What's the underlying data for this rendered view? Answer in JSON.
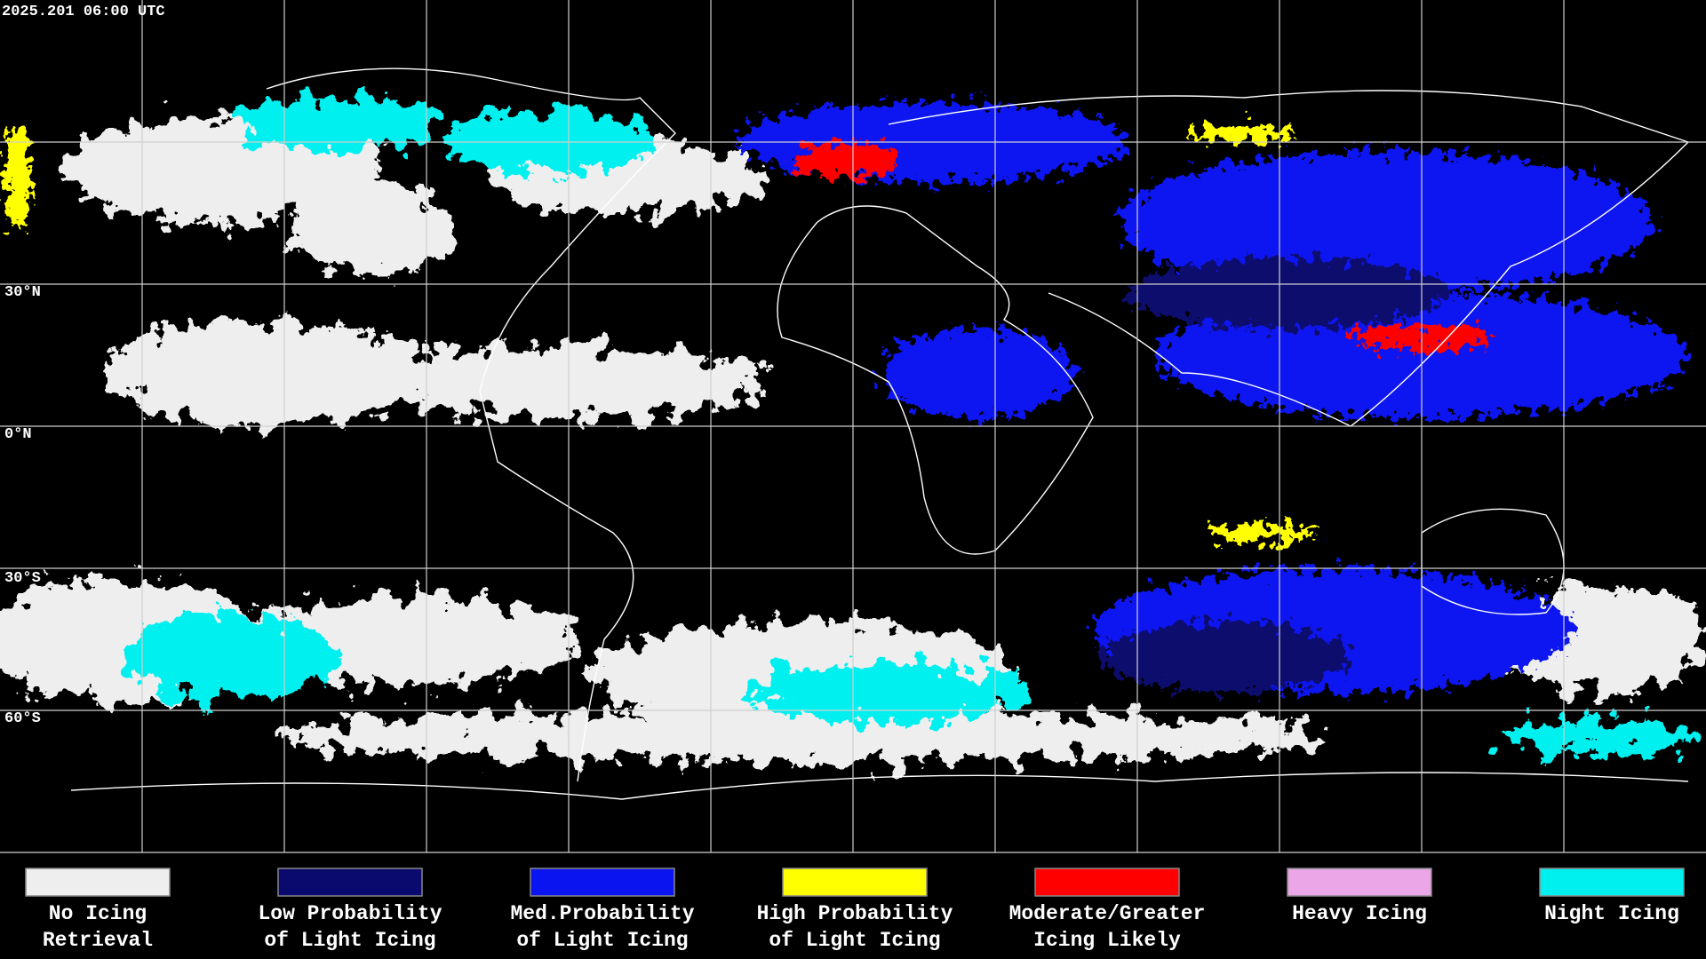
{
  "header": {
    "timestamp": "2025.201 06:00 UTC"
  },
  "map": {
    "lat_labels": [
      "30°N",
      "0°N",
      "30°S",
      "60°S"
    ]
  },
  "legend": {
    "items": [
      {
        "color": "#eeeeee",
        "lines": [
          "No Icing",
          "Retrieval"
        ]
      },
      {
        "color": "#0a0a6e",
        "lines": [
          "Low Probability",
          "of Light Icing"
        ]
      },
      {
        "color": "#0a14f0",
        "lines": [
          "Med.Probability",
          "of Light Icing"
        ]
      },
      {
        "color": "#ffff00",
        "lines": [
          "High Probability",
          "of Light Icing"
        ]
      },
      {
        "color": "#ff0000",
        "lines": [
          "Moderate/Greater",
          "Icing Likely"
        ]
      },
      {
        "color": "#eaa6e6",
        "lines": [
          "Heavy Icing"
        ]
      },
      {
        "color": "#00f0f0",
        "lines": [
          "Night Icing"
        ]
      }
    ]
  }
}
